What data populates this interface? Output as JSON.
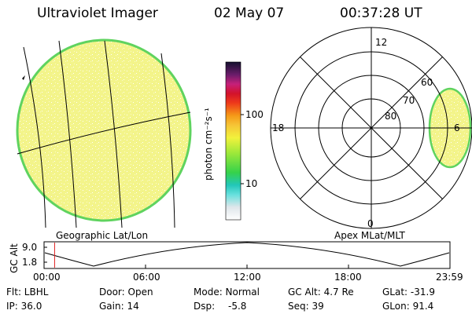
{
  "header": {
    "instrument": "Ultraviolet Imager",
    "date": "02 May 07",
    "time": "00:37:28 UT"
  },
  "left_panel": {
    "label": "Geographic Lat/Lon"
  },
  "right_panel": {
    "label": "Apex MLat/MLT",
    "mlt_labels": {
      "top": "12",
      "left": "18",
      "right": "6",
      "bottom": "0"
    },
    "lat_labels": [
      "60",
      "70",
      "80"
    ]
  },
  "colorbar": {
    "unit": "photon cm⁻²s⁻¹",
    "ticks": [
      "100",
      "10"
    ]
  },
  "altitude_plot": {
    "ylabel": "GC Alt",
    "yticks": [
      "9.0",
      "1.8"
    ],
    "xticks": [
      "00:00",
      "06:00",
      "12:00",
      "18:00",
      "23:59"
    ],
    "current_time_fraction": 0.026
  },
  "info": {
    "flt": "Flt: LBHL",
    "door": "Door: Open",
    "mode": "Mode: Normal",
    "gc_alt": "GC Alt: 4.7 Re",
    "glat": "GLat: -31.9",
    "ip": "IP: 36.0",
    "gain": "Gain: 14",
    "dsp_label": "Dsp:",
    "dsp_value": "-5.8",
    "seq": "Seq: 39",
    "glon": "GLon:  91.4"
  },
  "colors": {
    "earth_fill": "#f3f48a",
    "limb": "#5fd35f",
    "grid": "#000000"
  }
}
